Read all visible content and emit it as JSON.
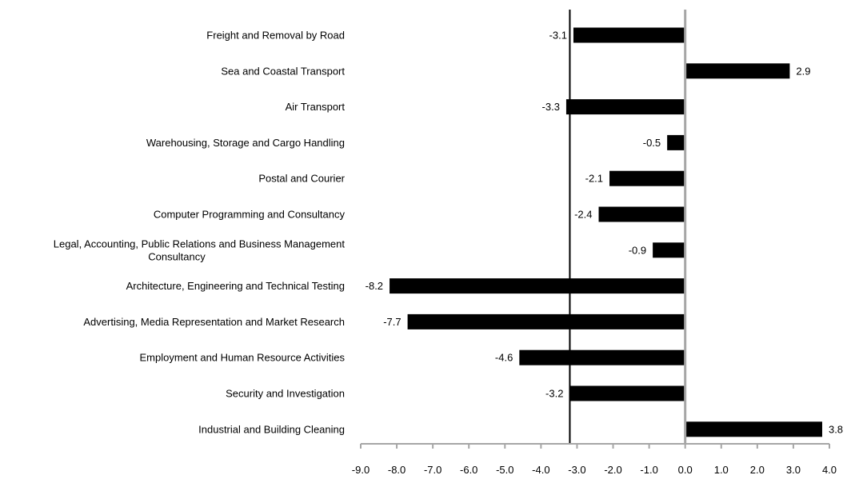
{
  "chart_data": {
    "type": "bar",
    "orientation": "horizontal",
    "title": "",
    "xlabel": "",
    "ylabel": "",
    "xlim": [
      -9.0,
      4.0
    ],
    "x_ticks": [
      -9.0,
      -8.0,
      -7.0,
      -6.0,
      -5.0,
      -4.0,
      -3.0,
      -2.0,
      -1.0,
      0.0,
      1.0,
      2.0,
      3.0,
      4.0
    ],
    "x_tick_labels": [
      "-9.0",
      "-8.0",
      "-7.0",
      "-6.0",
      "-5.0",
      "-4.0",
      "-3.0",
      "-2.0",
      "-1.0",
      "0.0",
      "1.0",
      "2.0",
      "3.0",
      "4.0"
    ],
    "grid": false,
    "legend": "none",
    "bar_color": "#000000",
    "axis_color": "#a6a6a6",
    "reference_line": {
      "value": -3.2,
      "color": "#000000"
    },
    "categories": [
      [
        "Freight and Removal by Road"
      ],
      [
        "Sea and Coastal Transport"
      ],
      [
        "Air Transport"
      ],
      [
        "Warehousing, Storage and Cargo Handling"
      ],
      [
        "Postal and Courier"
      ],
      [
        "Computer Programming and Consultancy"
      ],
      [
        "Legal, Accounting, Public Relations and Business Management",
        "Consultancy"
      ],
      [
        "Architecture, Engineering and Technical Testing"
      ],
      [
        "Advertising, Media Representation and Market Research"
      ],
      [
        "Employment and Human Resource Activities"
      ],
      [
        "Security and Investigation"
      ],
      [
        "Industrial and Building Cleaning"
      ]
    ],
    "values": [
      -3.1,
      2.9,
      -3.3,
      -0.5,
      -2.1,
      -2.4,
      -0.9,
      -8.2,
      -7.7,
      -4.6,
      -3.2,
      3.8
    ],
    "value_labels": [
      "-3.1",
      "2.9",
      "-3.3",
      "-0.5",
      "-2.1",
      "-2.4",
      "-0.9",
      "-8.2",
      "-7.7",
      "-4.6",
      "-3.2",
      "3.8"
    ]
  }
}
